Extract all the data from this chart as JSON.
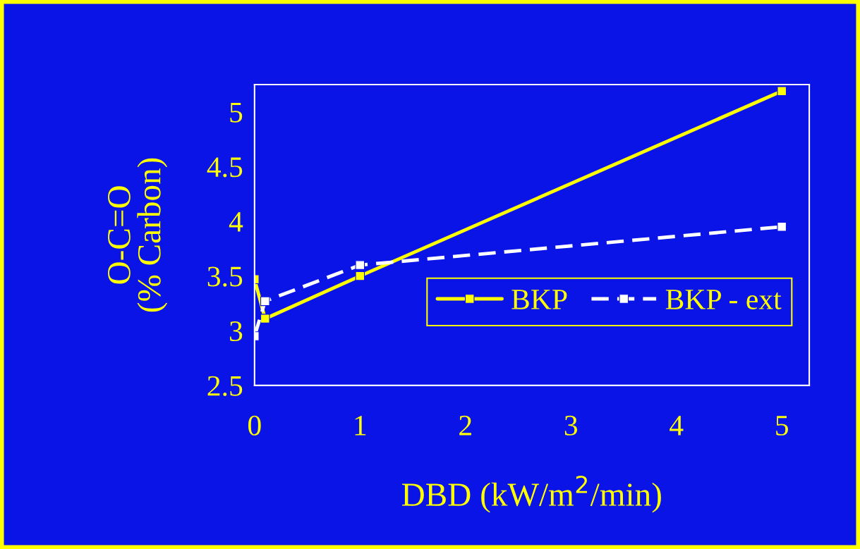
{
  "chart_data": {
    "type": "line",
    "xlabel": "DBD (kW/m$^{2}$/min)",
    "ylabel": "O-C=O\n(% Carbon)",
    "x": [
      0,
      0.1,
      1,
      5
    ],
    "series": [
      {
        "name": "BKP",
        "color": "#ffff00",
        "values": [
          3.47,
          3.11,
          3.5,
          5.19
        ],
        "line_style": "solid"
      },
      {
        "name": "BKP - ext",
        "color": "#ffffff",
        "values": [
          2.95,
          3.27,
          3.6,
          3.95
        ],
        "line_style": "dashed"
      }
    ],
    "xlim": [
      0,
      5.26
    ],
    "xticks": [
      0,
      1,
      2,
      3,
      4,
      5
    ],
    "ylim": [
      2.5,
      5.25
    ],
    "yticks": [
      2.5,
      3,
      3.5,
      4,
      4.5,
      5
    ],
    "marker": "square",
    "legend": "lower right",
    "grid": false
  }
}
